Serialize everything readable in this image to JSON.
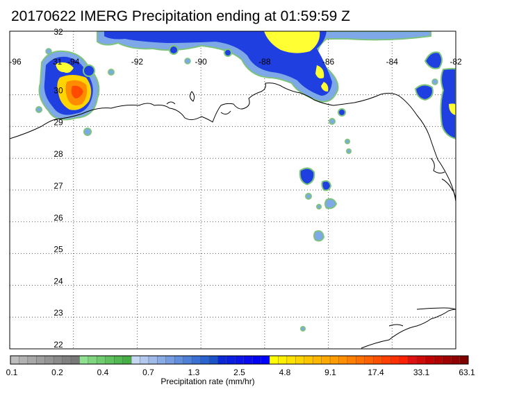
{
  "title": "20170622 IMERG Precipitation ending at 01:59:59 Z",
  "map": {
    "lon_labels": [
      "-96",
      "-94",
      "-92",
      "-90",
      "-88",
      "-86",
      "-84",
      "-82"
    ],
    "lat_labels": [
      "32",
      "30",
      "29",
      "28",
      "27",
      "26",
      "25",
      "24",
      "23",
      "22"
    ],
    "lon_values": [
      -96,
      -94,
      -92,
      -90,
      -88,
      -86,
      -84,
      -82
    ],
    "lat_values": [
      32,
      30,
      29,
      28,
      27,
      26,
      25,
      24,
      23,
      22
    ],
    "stray_label": "31",
    "extent": {
      "lon_min": -96,
      "lon_max": -82,
      "lat_min": 22,
      "lat_max": 32
    }
  },
  "colorbar": {
    "label": "Precipitation rate (mm/hr)",
    "tick_labels": [
      "0.1",
      "0.2",
      "0.4",
      "0.7",
      "1.3",
      "2.5",
      "4.8",
      "9.1",
      "17.4",
      "33.1",
      "63.1"
    ],
    "colors": [
      "#bdbdbd",
      "#b2b2b2",
      "#a8a8a8",
      "#9e9e9e",
      "#949494",
      "#8a8a8a",
      "#808080",
      "#787878",
      "#8fe08f",
      "#7fd67f",
      "#6fcc6f",
      "#5fc25f",
      "#52b852",
      "#45ae45",
      "#c7d7f3",
      "#b3c8ee",
      "#9fbae9",
      "#8aace6",
      "#769de2",
      "#628fdd",
      "#4f80d8",
      "#3b71d4",
      "#2a62cf",
      "#1a53c8",
      "#0a28d8",
      "#0a1ee0",
      "#0a14e8",
      "#0a0af0",
      "#0000f5",
      "#0000ff",
      "#ffff00",
      "#fff000",
      "#ffe200",
      "#ffd400",
      "#ffc600",
      "#ffb800",
      "#ffaa00",
      "#ff9c00",
      "#ff8e00",
      "#ff8000",
      "#ff7000",
      "#ff6000",
      "#ff5000",
      "#ff4000",
      "#ff3000",
      "#ff2000",
      "#e01010",
      "#d00808",
      "#c00000",
      "#b00000",
      "#a00000",
      "#900000",
      "#800000"
    ]
  }
}
